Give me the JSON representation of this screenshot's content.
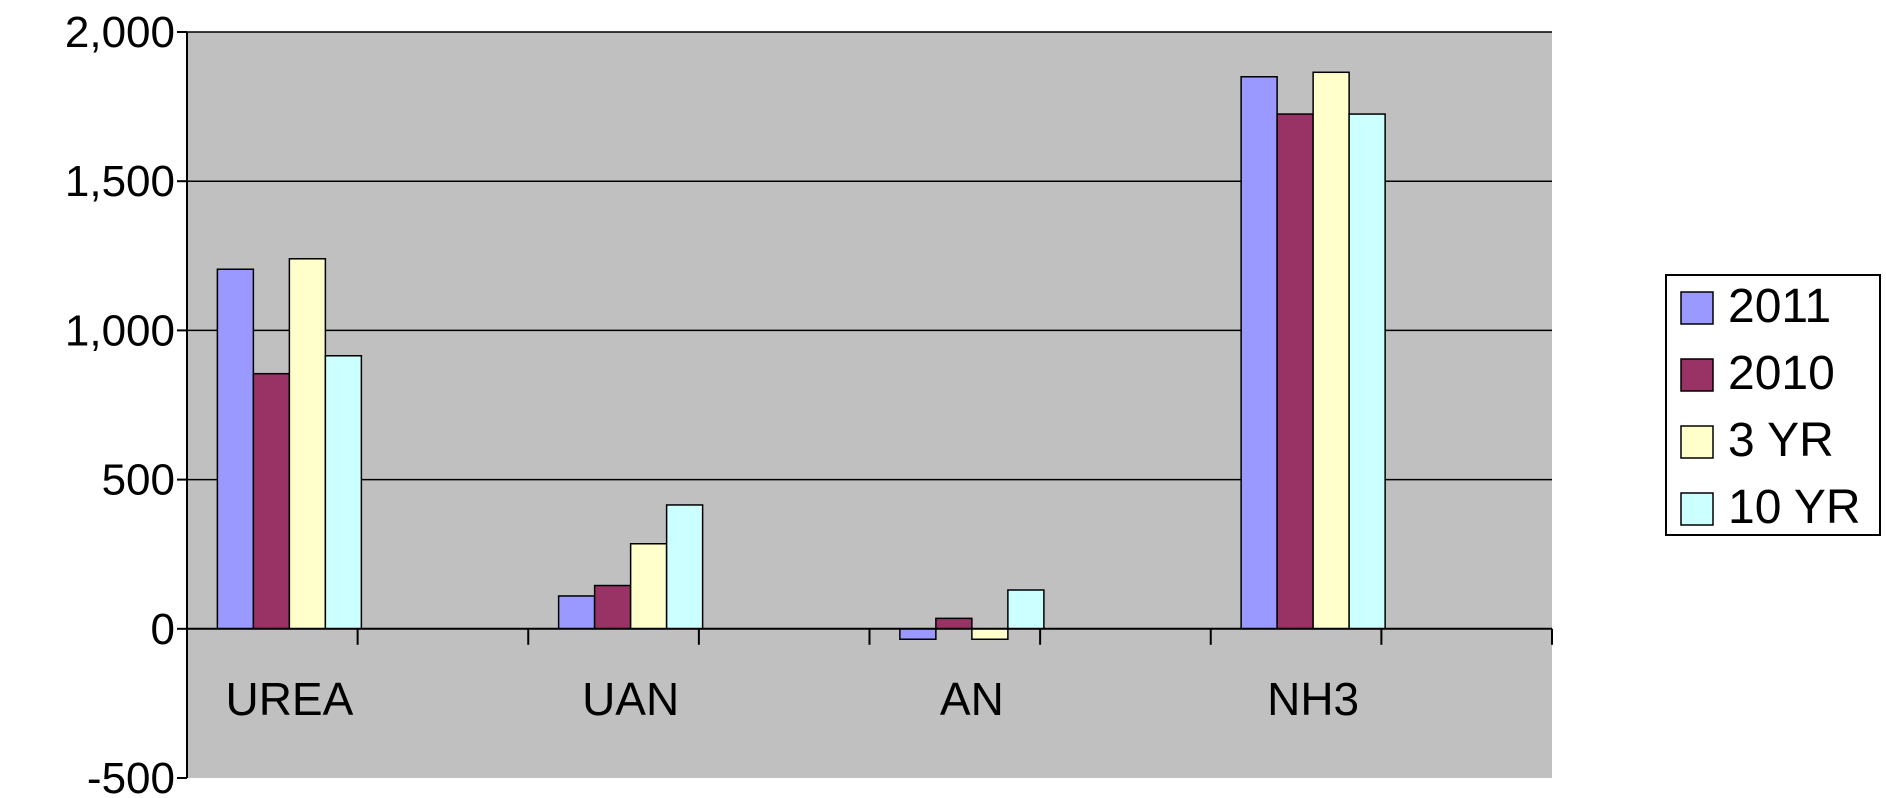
{
  "chart_data": {
    "type": "bar",
    "categories": [
      "UREA",
      "UAN",
      "AN",
      "NH3"
    ],
    "series": [
      {
        "name": "2011",
        "color": "#9999FF",
        "values": [
          1205,
          110,
          -35,
          1850
        ]
      },
      {
        "name": "2010",
        "color": "#993366",
        "values": [
          855,
          145,
          35,
          1725
        ]
      },
      {
        "name": "3 YR",
        "color": "#FFFFCC",
        "values": [
          1240,
          285,
          -35,
          1865
        ]
      },
      {
        "name": "10 YR",
        "color": "#CCFFFF",
        "values": [
          915,
          415,
          130,
          1725
        ]
      }
    ],
    "ylim": [
      -500,
      2000
    ],
    "yticks": [
      -500,
      0,
      500,
      1000,
      1500,
      2000
    ],
    "ytick_labels": [
      "-500",
      "0",
      "500",
      "1,000",
      "1,500",
      "2,000"
    ],
    "grid": true,
    "plot_background": "#C0C0C0",
    "legend_position": "right"
  }
}
